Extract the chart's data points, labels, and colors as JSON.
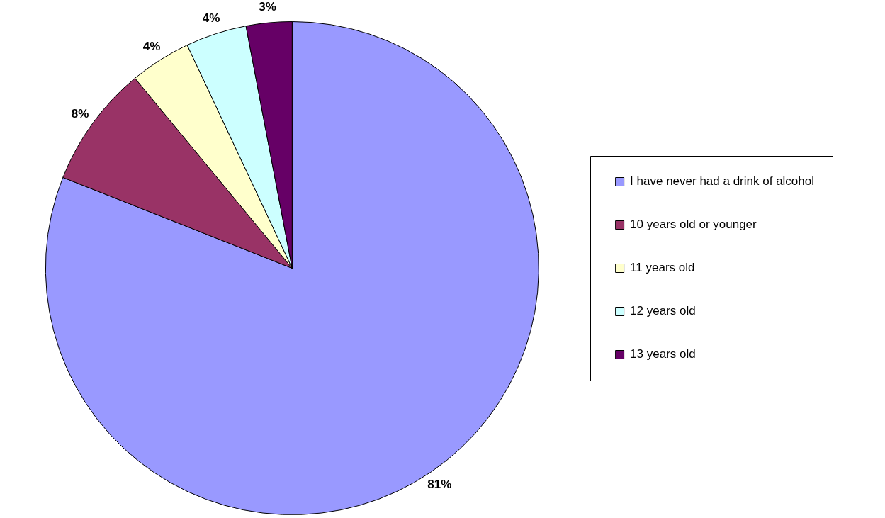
{
  "chart_data": {
    "type": "pie",
    "categories": [
      "I have never had a drink of alcohol",
      "10 years old or younger",
      "11 years old",
      "12 years old",
      "13 years old"
    ],
    "values": [
      81,
      8,
      4,
      4,
      3
    ],
    "colors": [
      "#9999ff",
      "#993366",
      "#ffffcc",
      "#ccffff",
      "#660066"
    ],
    "value_labels": [
      "81%",
      "8%",
      "4%",
      "4%",
      "3%"
    ],
    "legend": "right"
  }
}
